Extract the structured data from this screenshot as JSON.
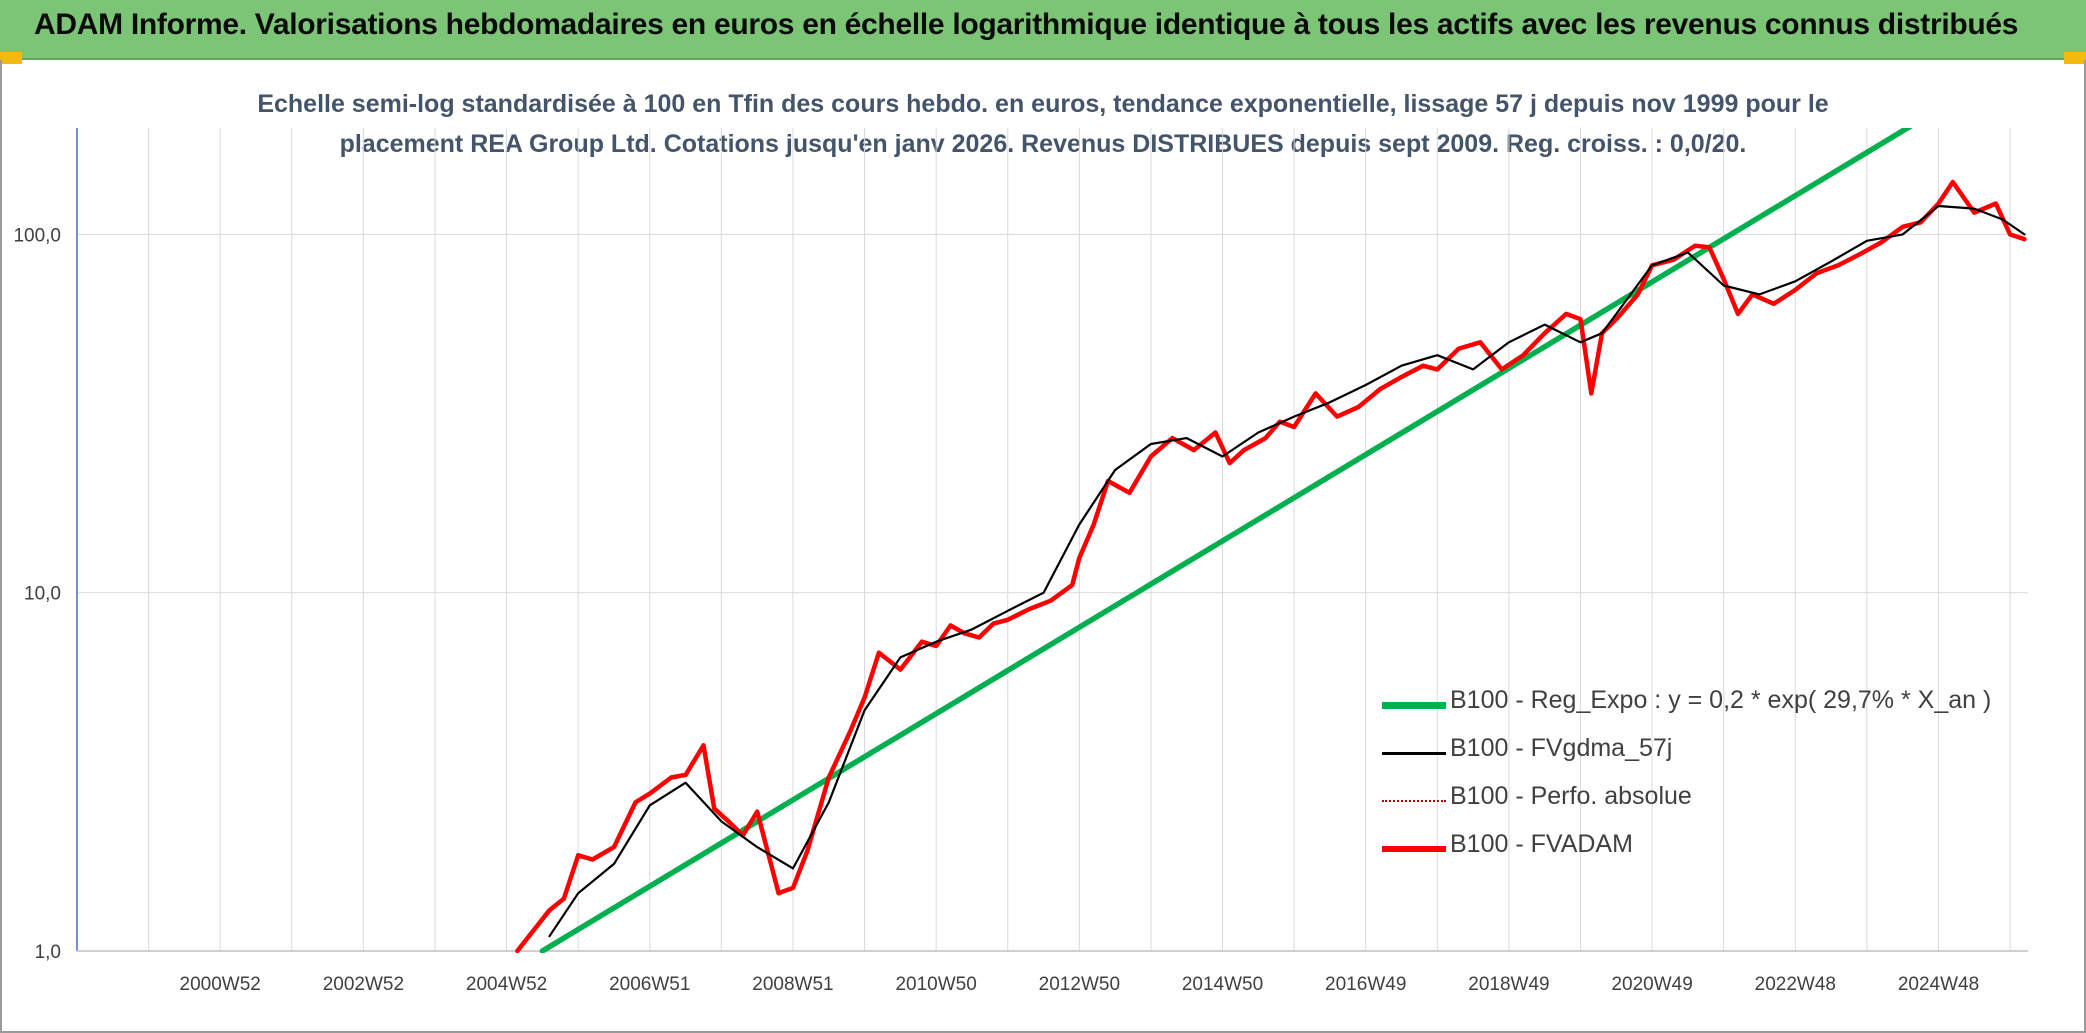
{
  "banner": {
    "title": "ADAM Informe. Valorisations hebdomadaires en euros en échelle logarithmique identique à tous les actifs avec les revenus connus distribués"
  },
  "colors": {
    "banner": "#7cc576",
    "corner": "#f2b90f",
    "reg_expo": "#00b050",
    "fvgdma": "#000000",
    "perfo": "#c00000",
    "fvadam": "#ff0000",
    "grid": "#d9d9d9",
    "axis": "#4472c4"
  },
  "chart_data": {
    "type": "line",
    "title_line1": "Echelle semi-log standardisée à 100 en Tfin des cours hebdo. en euros, tendance exponentielle, lissage 57 j depuis nov 1999 pour le",
    "title_line2": "placement REA Group Ltd. Cotations jusqu'en janv 2026. Revenus DISTRIBUES depuis sept 2009. Reg. croiss. : 0,0/20.",
    "y_scale": "log",
    "ylim": [
      1,
      200
    ],
    "xlim": [
      1999.0,
      2026.25
    ],
    "y_ticks": [
      {
        "value": 1,
        "label": "1,0"
      },
      {
        "value": 10,
        "label": "10,0"
      },
      {
        "value": 100,
        "label": "100,0"
      }
    ],
    "x_ticks": [
      {
        "x": 2001.0,
        "label": "2000W52"
      },
      {
        "x": 2003.0,
        "label": "2002W52"
      },
      {
        "x": 2005.0,
        "label": "2004W52"
      },
      {
        "x": 2007.0,
        "label": "2006W51"
      },
      {
        "x": 2009.0,
        "label": "2008W51"
      },
      {
        "x": 2011.0,
        "label": "2010W50"
      },
      {
        "x": 2013.0,
        "label": "2012W50"
      },
      {
        "x": 2015.0,
        "label": "2014W50"
      },
      {
        "x": 2017.0,
        "label": "2016W49"
      },
      {
        "x": 2019.0,
        "label": "2018W49"
      },
      {
        "x": 2021.0,
        "label": "2020W49"
      },
      {
        "x": 2023.0,
        "label": "2022W48"
      },
      {
        "x": 2025.0,
        "label": "2024W48"
      }
    ],
    "grid": true,
    "legend_position": "bottom-right",
    "series": [
      {
        "name": "B100 - Reg_Expo : y = 0,2 * exp( 29,7% *  X_an )",
        "key": "reg_expo",
        "x": [
          2005.5,
          2024.6
        ],
        "y": [
          1.0,
          200
        ]
      },
      {
        "name": "B100 - FVgdma_57j",
        "key": "fvgdma",
        "x": [
          2005.6,
          2006.0,
          2006.5,
          2007.0,
          2007.5,
          2008.0,
          2008.5,
          2009.0,
          2009.5,
          2010.0,
          2010.5,
          2011.0,
          2011.5,
          2012.0,
          2012.5,
          2013.0,
          2013.5,
          2014.0,
          2014.5,
          2015.0,
          2015.5,
          2016.0,
          2016.5,
          2017.0,
          2017.5,
          2018.0,
          2018.5,
          2019.0,
          2019.5,
          2020.0,
          2020.3,
          2020.5,
          2021.0,
          2021.5,
          2022.0,
          2022.5,
          2023.0,
          2023.5,
          2024.0,
          2024.5,
          2025.0,
          2025.5,
          2025.9,
          2026.2
        ],
        "y": [
          1.1,
          1.45,
          1.75,
          2.55,
          2.95,
          2.3,
          1.95,
          1.7,
          2.6,
          4.7,
          6.6,
          7.3,
          7.9,
          8.9,
          10.0,
          15.5,
          22.0,
          26.0,
          27.0,
          24.0,
          28.0,
          31.0,
          34.0,
          38.0,
          43.0,
          46.0,
          42.0,
          50.0,
          56.0,
          50.0,
          53.0,
          60.0,
          82.0,
          89.0,
          72.0,
          68.0,
          74.0,
          84.0,
          96.0,
          100.0,
          120.0,
          118.0,
          110.0,
          100.0
        ]
      },
      {
        "name": "B100 - Perfo. absolue",
        "key": "perfo",
        "x": [],
        "y": []
      },
      {
        "name": "B100 - FVADAM",
        "key": "fvadam",
        "x": [
          2005.15,
          2005.6,
          2005.8,
          2006.0,
          2006.2,
          2006.5,
          2006.8,
          2007.0,
          2007.3,
          2007.5,
          2007.75,
          2007.9,
          2008.1,
          2008.3,
          2008.5,
          2008.8,
          2009.0,
          2009.2,
          2009.5,
          2009.8,
          2010.0,
          2010.2,
          2010.5,
          2010.8,
          2011.0,
          2011.2,
          2011.4,
          2011.6,
          2011.8,
          2012.0,
          2012.3,
          2012.6,
          2012.9,
          2013.0,
          2013.2,
          2013.4,
          2013.7,
          2014.0,
          2014.3,
          2014.6,
          2014.9,
          2015.1,
          2015.3,
          2015.6,
          2015.8,
          2016.0,
          2016.3,
          2016.6,
          2016.9,
          2017.2,
          2017.5,
          2017.8,
          2018.0,
          2018.3,
          2018.6,
          2018.9,
          2019.2,
          2019.5,
          2019.8,
          2020.0,
          2020.15,
          2020.3,
          2020.5,
          2020.8,
          2021.0,
          2021.3,
          2021.6,
          2021.8,
          2022.0,
          2022.2,
          2022.4,
          2022.7,
          2023.0,
          2023.3,
          2023.6,
          2023.9,
          2024.2,
          2024.5,
          2024.75,
          2025.0,
          2025.2,
          2025.5,
          2025.8,
          2026.0,
          2026.2
        ],
        "y": [
          1.0,
          1.3,
          1.4,
          1.85,
          1.8,
          1.95,
          2.6,
          2.75,
          3.05,
          3.1,
          3.75,
          2.5,
          2.3,
          2.1,
          2.45,
          1.45,
          1.5,
          1.9,
          3.05,
          4.1,
          5.1,
          6.8,
          6.1,
          7.3,
          7.1,
          8.1,
          7.7,
          7.5,
          8.2,
          8.4,
          9.0,
          9.5,
          10.5,
          12.5,
          15.5,
          20.5,
          19.0,
          24.0,
          27.0,
          25.0,
          28.0,
          23.0,
          25.0,
          27.0,
          30.0,
          29.0,
          36.0,
          31.0,
          33.0,
          37.0,
          40.0,
          43.0,
          42.0,
          48.0,
          50.0,
          42.0,
          46.0,
          53.0,
          60.0,
          58.0,
          36.0,
          53.0,
          58.0,
          68.0,
          82.0,
          85.0,
          93.0,
          92.0,
          75.0,
          60.0,
          68.0,
          64.0,
          70.0,
          78.0,
          82.0,
          88.0,
          95.0,
          105.0,
          108.0,
          122.0,
          140.0,
          115.0,
          122.0,
          100.0,
          97.0
        ]
      }
    ]
  }
}
